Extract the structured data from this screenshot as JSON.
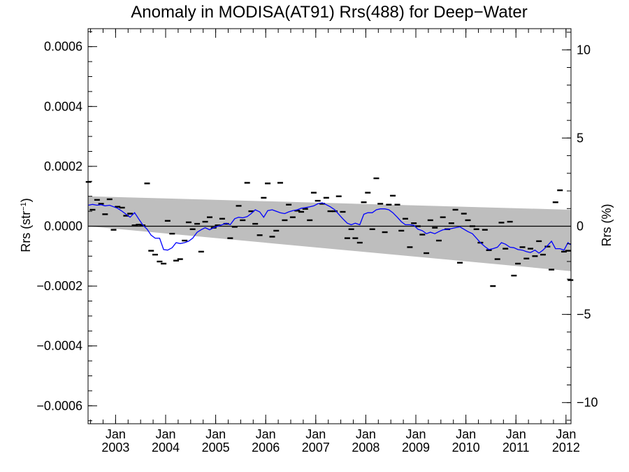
{
  "chart_data": {
    "type": "line",
    "title": "Anomaly in MODISA(AT91) Rrs(488) for Deep−Water",
    "ylabel_left_main": "Rrs (str",
    "ylabel_left_sup": "−1",
    "ylabel_left_close": ")",
    "ylabel_right": "Rrs (%)",
    "ylim_left": [
      -0.00066,
      0.00066
    ],
    "ylim_right": [
      -11.2,
      11.2
    ],
    "xlim": [
      2002.45,
      2012.1
    ],
    "grid": false,
    "legend": "none",
    "left_ticks": [
      {
        "v": 0.0006,
        "label": "0.0006"
      },
      {
        "v": 0.0004,
        "label": "0.0004"
      },
      {
        "v": 0.0002,
        "label": "0.0002"
      },
      {
        "v": 0.0,
        "label": "0.0000"
      },
      {
        "v": -0.0002,
        "label": "−0.0002"
      },
      {
        "v": -0.0004,
        "label": "−0.0004"
      },
      {
        "v": -0.0006,
        "label": "−0.0006"
      }
    ],
    "right_ticks": [
      {
        "v": 10,
        "label": "10"
      },
      {
        "v": 5,
        "label": "5"
      },
      {
        "v": 0,
        "label": "0"
      },
      {
        "v": -5,
        "label": "−5"
      },
      {
        "v": -10,
        "label": "−10"
      }
    ],
    "x_ticks": [
      {
        "v": 2003.0,
        "month": "Jan",
        "year": "2003"
      },
      {
        "v": 2004.0,
        "month": "Jan",
        "year": "2004"
      },
      {
        "v": 2005.0,
        "month": "Jan",
        "year": "2005"
      },
      {
        "v": 2006.0,
        "month": "Jan",
        "year": "2006"
      },
      {
        "v": 2007.0,
        "month": "Jan",
        "year": "2007"
      },
      {
        "v": 2008.0,
        "month": "Jan",
        "year": "2008"
      },
      {
        "v": 2009.0,
        "month": "Jan",
        "year": "2009"
      },
      {
        "v": 2010.0,
        "month": "Jan",
        "year": "2010"
      },
      {
        "v": 2011.0,
        "month": "Jan",
        "year": "2011"
      },
      {
        "v": 2012.0,
        "month": "Jan",
        "year": "2012"
      }
    ],
    "band": {
      "x": [
        2002.45,
        2012.1
      ],
      "upper": [
        0.0001,
        5.5e-05
      ],
      "lower": [
        0.0,
        -0.00015
      ],
      "color": "#bebebe"
    },
    "zero_line": 0.0,
    "series": [
      {
        "kind": "monthly-anomaly",
        "color": "#000000",
        "x": [
          2002.46,
          2002.54,
          2002.63,
          2002.71,
          2002.79,
          2002.88,
          2002.96,
          2003.04,
          2003.13,
          2003.21,
          2003.29,
          2003.38,
          2003.46,
          2003.54,
          2003.63,
          2003.71,
          2003.79,
          2003.88,
          2003.96,
          2004.04,
          2004.13,
          2004.21,
          2004.29,
          2004.38,
          2004.46,
          2004.54,
          2004.63,
          2004.71,
          2004.79,
          2004.88,
          2004.96,
          2005.04,
          2005.13,
          2005.21,
          2005.29,
          2005.38,
          2005.46,
          2005.54,
          2005.63,
          2005.71,
          2005.79,
          2005.88,
          2005.96,
          2006.04,
          2006.13,
          2006.21,
          2006.29,
          2006.38,
          2006.46,
          2006.54,
          2006.63,
          2006.71,
          2006.79,
          2006.88,
          2006.96,
          2007.04,
          2007.13,
          2007.21,
          2007.29,
          2007.38,
          2007.46,
          2007.54,
          2007.63,
          2007.71,
          2007.79,
          2007.88,
          2007.96,
          2008.04,
          2008.13,
          2008.21,
          2008.29,
          2008.38,
          2008.46,
          2008.54,
          2008.63,
          2008.71,
          2008.79,
          2008.88,
          2008.96,
          2009.04,
          2009.13,
          2009.21,
          2009.29,
          2009.38,
          2009.46,
          2009.54,
          2009.63,
          2009.71,
          2009.79,
          2009.88,
          2009.96,
          2010.04,
          2010.13,
          2010.21,
          2010.29,
          2010.38,
          2010.46,
          2010.54,
          2010.63,
          2010.71,
          2010.79,
          2010.88,
          2010.96,
          2011.04,
          2011.13,
          2011.21,
          2011.29,
          2011.38,
          2011.46,
          2011.54,
          2011.63,
          2011.71,
          2011.79,
          2011.88,
          2011.96,
          2012.04,
          2012.09
        ],
        "y": [
          0.000148,
          5.5e-05,
          8.8e-05,
          7.5e-05,
          4e-05,
          9e-05,
          -1.2e-05,
          6.5e-05,
          6.2e-05,
          3.5e-05,
          4.2e-05,
          3e-06,
          5e-06,
          3e-06,
          0.000143,
          -8.2e-05,
          -9.5e-05,
          -0.000118,
          -0.000125,
          1.8e-05,
          -2.5e-05,
          -0.000115,
          -0.00011,
          -4.8e-05,
          1.3e-05,
          -1e-05,
          8e-06,
          -8.5e-05,
          1.5e-05,
          3e-05,
          -5e-06,
          3e-06,
          2.5e-05,
          8e-06,
          -4e-05,
          -2e-06,
          6.8e-05,
          2e-05,
          0.000145,
          5e-05,
          8e-06,
          -3e-05,
          9.5e-05,
          0.000143,
          -3.5e-05,
          -1.5e-05,
          0.000145,
          2e-05,
          7.2e-05,
          3e-05,
          5.2e-05,
          4.8e-05,
          5.8e-05,
          2e-05,
          0.000112,
          8.5e-05,
          7.5e-05,
          9.5e-05,
          5e-05,
          5e-05,
          0.0001,
          4.8e-05,
          -4e-05,
          -1e-05,
          -4e-05,
          -5.5e-05,
          8e-05,
          0.000112,
          -1e-05,
          0.00016,
          7.5e-05,
          -2e-05,
          7.2e-05,
          0.000102,
          7.2e-05,
          -1.5e-05,
          2.5e-05,
          -7e-05,
          1e-05,
          0.0,
          -2.8e-05,
          -9e-05,
          2e-05,
          -5e-06,
          -4.8e-05,
          3e-05,
          -1e-05,
          1e-05,
          5.5e-05,
          -0.000122,
          4.2e-05,
          2e-05,
          0.0,
          -1e-05,
          -5.5e-05,
          -1.2e-05,
          -8e-05,
          -0.0002,
          -0.00011,
          1.2e-05,
          -7.5e-05,
          1.5e-05,
          -0.000165,
          -0.000125,
          -7e-05,
          -0.000108,
          -7.5e-05,
          -0.0001,
          -5e-05,
          -9.5e-05,
          -6.8e-05,
          -0.000145,
          8e-05,
          0.00012,
          -8.5e-05,
          -8.2e-05,
          -0.00018
        ]
      },
      {
        "kind": "running-mean",
        "color": "#0000ff",
        "x": [
          2002.46,
          2002.54,
          2002.63,
          2002.71,
          2002.79,
          2002.88,
          2002.96,
          2003.04,
          2003.13,
          2003.21,
          2003.29,
          2003.38,
          2003.46,
          2003.54,
          2003.63,
          2003.71,
          2003.79,
          2003.88,
          2003.96,
          2004.04,
          2004.13,
          2004.21,
          2004.29,
          2004.38,
          2004.46,
          2004.54,
          2004.63,
          2004.71,
          2004.79,
          2004.88,
          2004.96,
          2005.04,
          2005.13,
          2005.21,
          2005.29,
          2005.38,
          2005.46,
          2005.54,
          2005.63,
          2005.71,
          2005.79,
          2005.88,
          2005.96,
          2006.04,
          2006.13,
          2006.21,
          2006.29,
          2006.38,
          2006.46,
          2006.54,
          2006.63,
          2006.71,
          2006.79,
          2006.88,
          2006.96,
          2007.04,
          2007.13,
          2007.21,
          2007.29,
          2007.38,
          2007.46,
          2007.54,
          2007.63,
          2007.71,
          2007.79,
          2007.88,
          2007.96,
          2008.04,
          2008.13,
          2008.21,
          2008.29,
          2008.38,
          2008.46,
          2008.54,
          2008.63,
          2008.71,
          2008.79,
          2008.88,
          2008.96,
          2009.04,
          2009.13,
          2009.21,
          2009.29,
          2009.38,
          2009.46,
          2009.54,
          2009.63,
          2009.71,
          2009.79,
          2009.88,
          2009.96,
          2010.04,
          2010.13,
          2010.21,
          2010.29,
          2010.38,
          2010.46,
          2010.54,
          2010.63,
          2010.71,
          2010.79,
          2010.88,
          2010.96,
          2011.04,
          2011.13,
          2011.21,
          2011.29,
          2011.38,
          2011.46,
          2011.54,
          2011.63,
          2011.71,
          2011.79,
          2011.88,
          2011.96,
          2012.04,
          2012.09
        ],
        "y": [
          7e-05,
          7.3e-05,
          7e-05,
          7.2e-05,
          6.8e-05,
          7e-05,
          6.5e-05,
          6e-05,
          5e-05,
          4e-05,
          3e-05,
          4.5e-05,
          2.5e-05,
          5e-06,
          -1e-05,
          -3e-05,
          -4e-05,
          -4e-05,
          -7.8e-05,
          -8e-05,
          -7.2e-05,
          -5.5e-05,
          -5.8e-05,
          -5.5e-05,
          -5e-05,
          -4e-05,
          -2e-05,
          -1.2e-05,
          -5e-06,
          -1.2e-05,
          -5e-06,
          0.0,
          5e-06,
          1e-05,
          5e-06,
          2.5e-05,
          3e-05,
          2.8e-05,
          3.2e-05,
          4.2e-05,
          5.5e-05,
          4.8e-05,
          3e-05,
          5.2e-05,
          5.5e-05,
          5e-05,
          4.5e-05,
          4.2e-05,
          4.8e-05,
          5.2e-05,
          5.5e-05,
          6e-05,
          6.2e-05,
          6.5e-05,
          6.8e-05,
          7.5e-05,
          7.8e-05,
          7.2e-05,
          6.5e-05,
          5.5e-05,
          4e-05,
          2.5e-05,
          1e-05,
          5e-06,
          1e-05,
          5e-06,
          4e-05,
          4.5e-05,
          4.5e-05,
          5.5e-05,
          5.8e-05,
          5.8e-05,
          5.5e-05,
          4.5e-05,
          3e-05,
          1.5e-05,
          5e-06,
          5e-06,
          3e-06,
          -1e-05,
          -1.5e-05,
          -2.5e-05,
          -2e-05,
          -2.5e-05,
          -1.8e-05,
          -1.2e-05,
          -1e-05,
          -8e-06,
          -5e-06,
          -2e-06,
          -1e-05,
          -1.8e-05,
          -2.5e-05,
          -4e-05,
          -5.5e-05,
          -6.8e-05,
          -7.8e-05,
          -7.5e-05,
          -7e-05,
          -5.5e-05,
          -6e-05,
          -7e-05,
          -7.2e-05,
          -7.8e-05,
          -8e-05,
          -8.5e-05,
          -8.8e-05,
          -8e-05,
          -9e-05,
          -8e-05,
          -6.5e-05,
          -5e-05,
          -7.5e-05,
          -7.5e-05,
          -8e-05,
          -5.5e-05,
          -6.2e-05
        ]
      }
    ]
  }
}
